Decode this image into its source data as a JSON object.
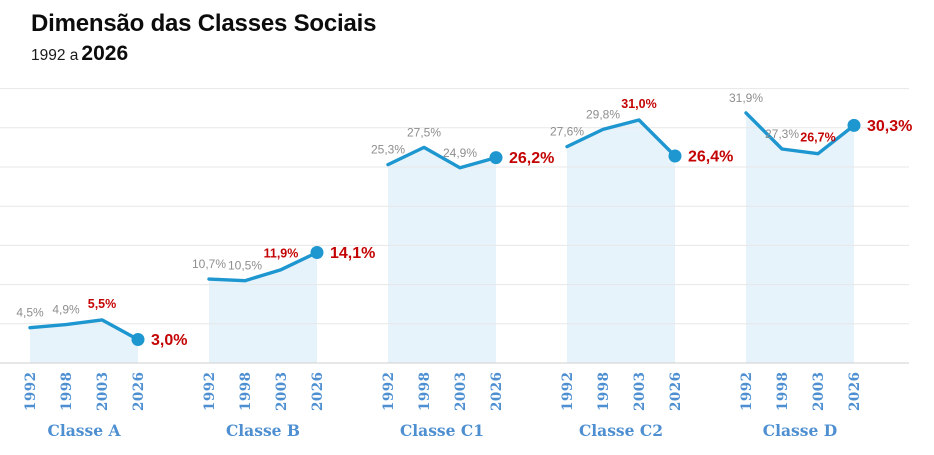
{
  "header": {
    "title": "Dimensão das Classes Sociais",
    "subtitle_prefix": "1992 a",
    "subtitle_year": "2026"
  },
  "chart_data": {
    "type": "area",
    "title": "Dimensão das Classes Sociais",
    "subtitle": "1992 a 2026",
    "x_years": [
      "1992",
      "1998",
      "2003",
      "2026"
    ],
    "ylim": [
      0,
      35
    ],
    "grid_step": 5,
    "grid": true,
    "legend_position": "none",
    "groups": [
      {
        "label": "Classe A",
        "values": [
          4.5,
          4.9,
          5.5,
          3.0
        ],
        "labels": [
          "4,5%",
          "4,9%",
          "5,5%",
          "3,0%"
        ],
        "emphasis": [
          "muted",
          "muted",
          "highlight",
          "final"
        ]
      },
      {
        "label": "Classe B",
        "values": [
          10.7,
          10.5,
          11.9,
          14.1
        ],
        "labels": [
          "10,7%",
          "10,5%",
          "11,9%",
          "14,1%"
        ],
        "emphasis": [
          "muted",
          "muted",
          "highlight",
          "final"
        ]
      },
      {
        "label": "Classe C1",
        "values": [
          25.3,
          27.5,
          24.9,
          26.2
        ],
        "labels": [
          "25,3%",
          "27,5%",
          "24,9%",
          "26,2%"
        ],
        "emphasis": [
          "muted",
          "muted",
          "muted",
          "final"
        ]
      },
      {
        "label": "Classe C2",
        "values": [
          27.6,
          29.8,
          31.0,
          26.4
        ],
        "labels": [
          "27,6%",
          "29,8%",
          "31,0%",
          "26,4%"
        ],
        "emphasis": [
          "muted",
          "muted",
          "highlight",
          "final"
        ]
      },
      {
        "label": "Classe D",
        "values": [
          31.9,
          27.3,
          26.7,
          30.3
        ],
        "labels": [
          "31,9%",
          "27,3%",
          "26,7%",
          "30,3%"
        ],
        "emphasis": [
          "muted",
          "muted",
          "highlight",
          "final"
        ]
      }
    ],
    "colors": {
      "line": "#1e96d0",
      "area": "#e7f3fa",
      "gridline": "#e7e7e7",
      "baseline": "#cfcfcf",
      "muted_label": "#8e8e8e",
      "red_label": "#c40404",
      "axis_label": "#4d8fd1",
      "title": "#0c0c0c"
    }
  }
}
